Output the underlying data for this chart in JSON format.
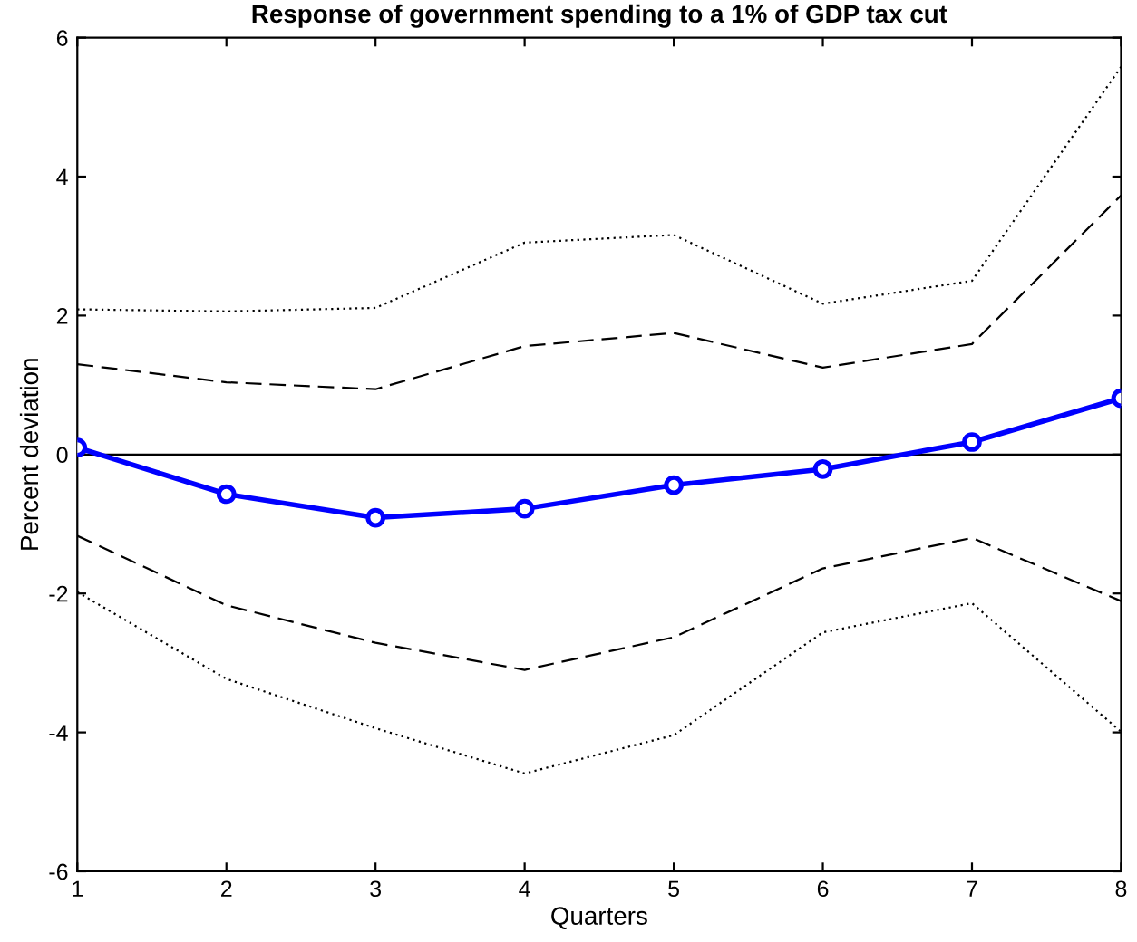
{
  "chart_data": {
    "type": "line",
    "title": "Response of government spending to a 1% of GDP tax cut",
    "xlabel": "Quarters",
    "ylabel": "Percent deviation",
    "x": [
      1,
      2,
      3,
      4,
      5,
      6,
      7,
      8
    ],
    "series": [
      {
        "color": "#0000ff",
        "marker": "circle",
        "line_style": "solid",
        "values": [
          0.1,
          -0.57,
          -0.91,
          -0.78,
          -0.44,
          -0.21,
          0.18,
          0.81
        ]
      },
      {
        "color": "#000000",
        "marker": "none",
        "line_style": "dashed",
        "values": [
          1.3,
          1.04,
          0.94,
          1.56,
          1.75,
          1.25,
          1.59,
          3.73
        ]
      },
      {
        "color": "#000000",
        "marker": "none",
        "line_style": "dashed",
        "values": [
          -1.17,
          -2.17,
          -2.71,
          -3.1,
          -2.63,
          -1.64,
          -1.2,
          -2.11
        ]
      },
      {
        "color": "#000000",
        "marker": "none",
        "line_style": "dotted",
        "values": [
          2.09,
          2.06,
          2.11,
          3.05,
          3.16,
          2.17,
          2.5,
          5.58
        ]
      },
      {
        "color": "#000000",
        "marker": "none",
        "line_style": "dotted",
        "values": [
          -1.98,
          -3.23,
          -3.94,
          -4.59,
          -4.04,
          -2.56,
          -2.14,
          -3.99
        ]
      }
    ],
    "ref_lines": [
      {
        "axis": "y",
        "value": 0,
        "color": "#000000",
        "line_style": "solid"
      }
    ],
    "xlim": [
      1,
      8
    ],
    "ylim": [
      -6,
      6
    ],
    "xticks": [
      1,
      2,
      3,
      4,
      5,
      6,
      7,
      8
    ],
    "yticks": [
      -6,
      -4,
      -2,
      0,
      2,
      4,
      6
    ],
    "grid": false,
    "legend": false
  }
}
